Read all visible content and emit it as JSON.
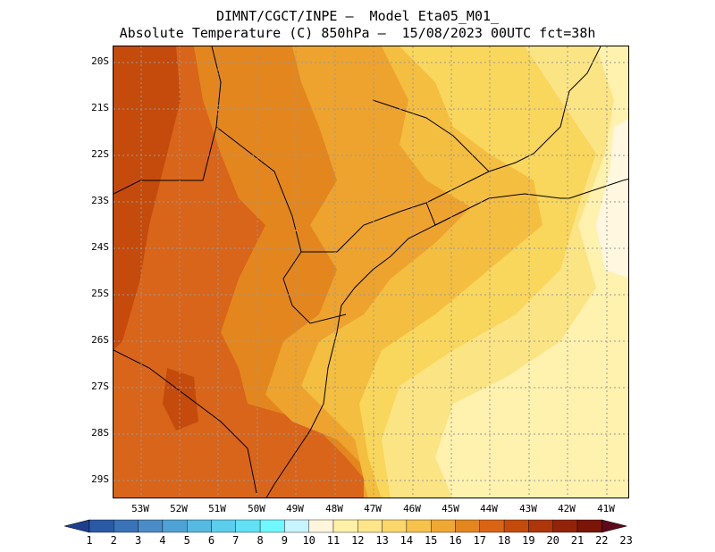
{
  "header": {
    "line1": "DIMNT/CGCT/INPE –  Model Eta05_M01_",
    "line2": "Absolute Temperature (C) 850hPa –  15/08/2023 00UTC fct=38h"
  },
  "axes": {
    "lat_labels": [
      "20S",
      "21S",
      "22S",
      "23S",
      "24S",
      "25S",
      "26S",
      "27S",
      "28S",
      "29S"
    ],
    "lon_labels": [
      "53W",
      "52W",
      "51W",
      "50W",
      "49W",
      "48W",
      "47W",
      "46W",
      "45W",
      "44W",
      "43W",
      "42W",
      "41W"
    ]
  },
  "colorbar": {
    "labels": [
      "1",
      "2",
      "3",
      "4",
      "5",
      "6",
      "7",
      "8",
      "9",
      "10",
      "11",
      "12",
      "13",
      "14",
      "15",
      "16",
      "17",
      "18",
      "19",
      "20",
      "21",
      "22",
      "23"
    ],
    "colors": [
      "#1d3f8e",
      "#2a5aa6",
      "#3a73b8",
      "#4a8cc8",
      "#4fa2d6",
      "#56b9e2",
      "#5ccded",
      "#61e1f5",
      "#6ff8ff",
      "#c8f4ff",
      "#fff5dc",
      "#fff0a8",
      "#fde58a",
      "#fbd66a",
      "#f6c24c",
      "#efa832",
      "#e3861e",
      "#d96414",
      "#c44b0c",
      "#ad360a",
      "#932308",
      "#7a1508",
      "#5e0a1c"
    ]
  },
  "map": {
    "grid": "dotted",
    "field_colors": {
      "t18": "#d8651a",
      "t17": "#e3861e",
      "t16": "#eda32e",
      "t15": "#f4be40",
      "t14": "#f9d65c",
      "t13": "#fbe484",
      "t12": "#fff1ae",
      "t11": "#fff7e0",
      "t19": "#c44b0c"
    }
  }
}
